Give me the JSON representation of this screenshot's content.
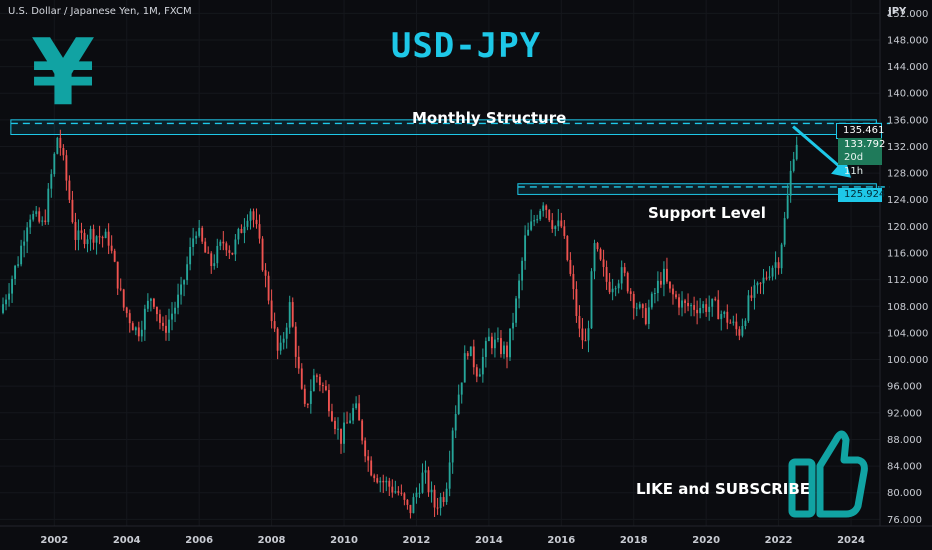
{
  "header": {
    "symbol_title": "U.S. Dollar / Japanese Yen, 1M, FXCM",
    "currency": "JPY"
  },
  "title": "USD-JPY",
  "icon_left": "yen-icon",
  "icon_right": "thumbs-up-icon",
  "annotations": {
    "monthly_structure": "Monthly Structure",
    "support_level": "Support Level",
    "like_subscribe": "LIKE and SUBSCRIBE"
  },
  "price_labels": {
    "resistance": "135.461",
    "support": "125.924",
    "last_price": "133.792",
    "countdown": "20d 11h"
  },
  "colors": {
    "up": "#26a69a",
    "down": "#ef5350",
    "accent": "#1ec8e8",
    "icon": "#11a3a3",
    "background": "#0b0c10"
  },
  "chart_data": {
    "type": "candlestick",
    "interval": "1M",
    "xlim": [
      2000.5,
      2024.8
    ],
    "ylim": [
      75,
      154
    ],
    "y_ticks": [
      "76.000",
      "80.000",
      "84.000",
      "88.000",
      "92.000",
      "96.000",
      "100.000",
      "104.000",
      "108.000",
      "112.000",
      "116.000",
      "120.000",
      "124.000",
      "128.000",
      "132.000",
      "136.000",
      "140.000",
      "144.000",
      "148.000",
      "152.000"
    ],
    "x_ticks": [
      "2002",
      "2004",
      "2006",
      "2008",
      "2010",
      "2012",
      "2014",
      "2016",
      "2018",
      "2020",
      "2022",
      "2024"
    ],
    "zones": [
      {
        "label": "Monthly Structure",
        "low": 133.8,
        "high": 136.0,
        "line": 135.461
      },
      {
        "label": "Support Level",
        "low": 124.8,
        "high": 126.4,
        "line": 125.924
      }
    ],
    "arrow": {
      "from": [
        2022.4,
        135.0
      ],
      "to": [
        2024.0,
        127.3
      ]
    },
    "close_path": [
      [
        2000.5,
        107
      ],
      [
        2001.0,
        115
      ],
      [
        2001.3,
        122
      ],
      [
        2001.7,
        120
      ],
      [
        2002.1,
        134
      ],
      [
        2002.3,
        128
      ],
      [
        2002.6,
        118
      ],
      [
        2003.0,
        119
      ],
      [
        2003.5,
        118
      ],
      [
        2003.9,
        108
      ],
      [
        2004.3,
        104
      ],
      [
        2004.7,
        110
      ],
      [
        2005.0,
        104
      ],
      [
        2005.5,
        110
      ],
      [
        2005.9,
        120
      ],
      [
        2006.3,
        114
      ],
      [
        2006.7,
        118
      ],
      [
        2006.9,
        116
      ],
      [
        2007.4,
        123
      ],
      [
        2007.6,
        119
      ],
      [
        2007.9,
        110
      ],
      [
        2008.2,
        100
      ],
      [
        2008.5,
        108
      ],
      [
        2008.9,
        92
      ],
      [
        2009.2,
        98
      ],
      [
        2009.5,
        95
      ],
      [
        2009.9,
        88
      ],
      [
        2010.3,
        93
      ],
      [
        2010.7,
        84
      ],
      [
        2011.0,
        82
      ],
      [
        2011.5,
        80
      ],
      [
        2011.8,
        77
      ],
      [
        2012.2,
        83
      ],
      [
        2012.5,
        78
      ],
      [
        2012.8,
        80
      ],
      [
        2013.0,
        90
      ],
      [
        2013.4,
        102
      ],
      [
        2013.7,
        98
      ],
      [
        2014.0,
        103
      ],
      [
        2014.5,
        101
      ],
      [
        2014.8,
        110
      ],
      [
        2015.0,
        118
      ],
      [
        2015.5,
        124
      ],
      [
        2015.8,
        120
      ],
      [
        2016.0,
        120
      ],
      [
        2016.3,
        111
      ],
      [
        2016.5,
        104
      ],
      [
        2016.7,
        102
      ],
      [
        2016.9,
        117
      ],
      [
        2017.3,
        111
      ],
      [
        2017.7,
        113
      ],
      [
        2018.0,
        109
      ],
      [
        2018.3,
        106
      ],
      [
        2018.8,
        113
      ],
      [
        2019.0,
        110
      ],
      [
        2019.4,
        108
      ],
      [
        2019.8,
        108
      ],
      [
        2020.2,
        108
      ],
      [
        2020.6,
        106
      ],
      [
        2020.9,
        104
      ],
      [
        2021.2,
        109
      ],
      [
        2021.5,
        111
      ],
      [
        2021.8,
        114
      ],
      [
        2022.0,
        115
      ],
      [
        2022.2,
        122
      ],
      [
        2022.4,
        131
      ],
      [
        2022.55,
        133.8
      ]
    ]
  }
}
